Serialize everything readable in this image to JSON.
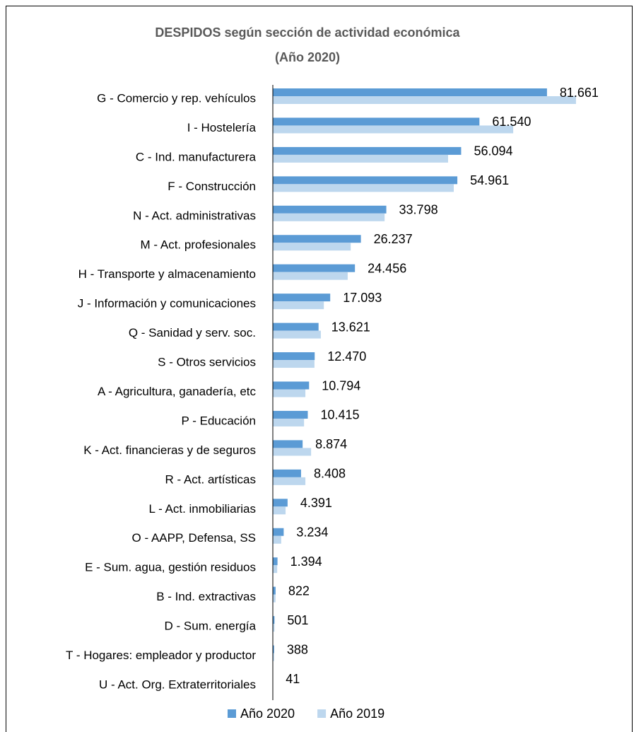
{
  "chart_data": {
    "type": "barh",
    "title": "DESPIDOS  según sección  de actividad  económica",
    "subtitle": "(Año 2020)",
    "categories": [
      "G - Comercio y rep. vehículos",
      "I - Hostelería",
      "C - Ind. manufacturera",
      "F - Construcción",
      "N - Act. administrativas",
      "M - Act. profesionales",
      "H - Transporte y almacenamiento",
      "J - Información y comunicaciones",
      "Q - Sanidad y serv. soc.",
      "S - Otros servicios",
      "A - Agricultura, ganadería, etc",
      "P - Educación",
      "K - Act. financieras y de seguros",
      "R - Act. artísticas",
      "L - Act. inmobiliarias",
      "O - AAPP, Defensa, SS",
      "E - Sum. agua, gestión residuos",
      "B - Ind. extractivas",
      "D - Sum. energía",
      "T - Hogares: empleador y productor",
      "U - Act. Org. Extraterritoriales"
    ],
    "series": [
      {
        "name": "Año 2020",
        "color": "#5b9bd5",
        "values": [
          81661,
          61540,
          56094,
          54961,
          33798,
          26237,
          24456,
          17093,
          13621,
          12470,
          10794,
          10415,
          8874,
          8408,
          4391,
          3234,
          1394,
          822,
          501,
          388,
          41
        ],
        "value_labels": [
          "81.661",
          "61.540",
          "56.094",
          "54.961",
          "33.798",
          "26.237",
          "24.456",
          "17.093",
          "13.621",
          "12.470",
          "10.794",
          "10.415",
          "8.874",
          "8.408",
          "4.391",
          "3.234",
          "1.394",
          "822",
          "501",
          "388",
          "41"
        ]
      },
      {
        "name": "Año 2019",
        "color": "#bdd7ee",
        "values": [
          90300,
          71600,
          52200,
          53900,
          33300,
          23200,
          22300,
          15200,
          14300,
          12400,
          9700,
          9300,
          11400,
          9700,
          3800,
          2500,
          1300,
          800,
          500,
          400,
          40
        ]
      }
    ],
    "xlim": [
      0,
      100000
    ],
    "legend": "bottom"
  }
}
